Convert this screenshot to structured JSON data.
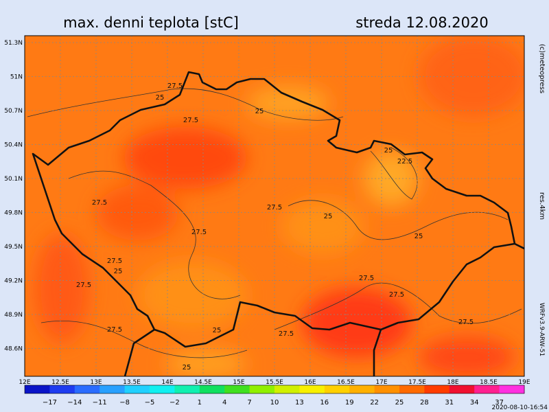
{
  "header": {
    "title": "max. denni teplota [stC]",
    "date": "streda 12.08.2020"
  },
  "side": {
    "copyright": "(c)meteopress",
    "resolution": "res.4km",
    "model": "WRFv3.9-ARW-51",
    "timestamp": "2020-08-10-16:54"
  },
  "lat_labels": [
    "51.3N",
    "51N",
    "50.7N",
    "50.4N",
    "50.1N",
    "49.8N",
    "49.5N",
    "49.2N",
    "48.9N",
    "48.6N"
  ],
  "lon_labels": [
    "12E",
    "12.5E",
    "13E",
    "13.5E",
    "14E",
    "14.5E",
    "15E",
    "15.5E",
    "16E",
    "16.5E",
    "17E",
    "17.5E",
    "18E",
    "18.5E",
    "19E"
  ],
  "colorbar": {
    "labels": [
      "−17",
      "−14",
      "−11",
      "−8",
      "−5",
      "−2",
      "1",
      "4",
      "7",
      "10",
      "13",
      "16",
      "19",
      "22",
      "25",
      "28",
      "31",
      "34",
      "37"
    ],
    "colors": [
      "#0a14c8",
      "#1e3cf0",
      "#2a6cff",
      "#28a0ff",
      "#20d0ff",
      "#10f0f0",
      "#10f0b0",
      "#10e060",
      "#40e020",
      "#90f000",
      "#d0f000",
      "#f8f000",
      "#ffd000",
      "#ffb000",
      "#ff9000",
      "#ff6a00",
      "#ff3c00",
      "#f01030",
      "#ff2090",
      "#ff30e0"
    ]
  },
  "contour_labels": [
    "27.5",
    "25",
    "25",
    "27.5",
    "25",
    "22.5",
    "27.5",
    "27.5",
    "25",
    "25",
    "27.5",
    "27.5",
    "25",
    "27.5",
    "27.5",
    "27.5",
    "27.5",
    "27.5",
    "25",
    "27.5",
    "25"
  ]
}
